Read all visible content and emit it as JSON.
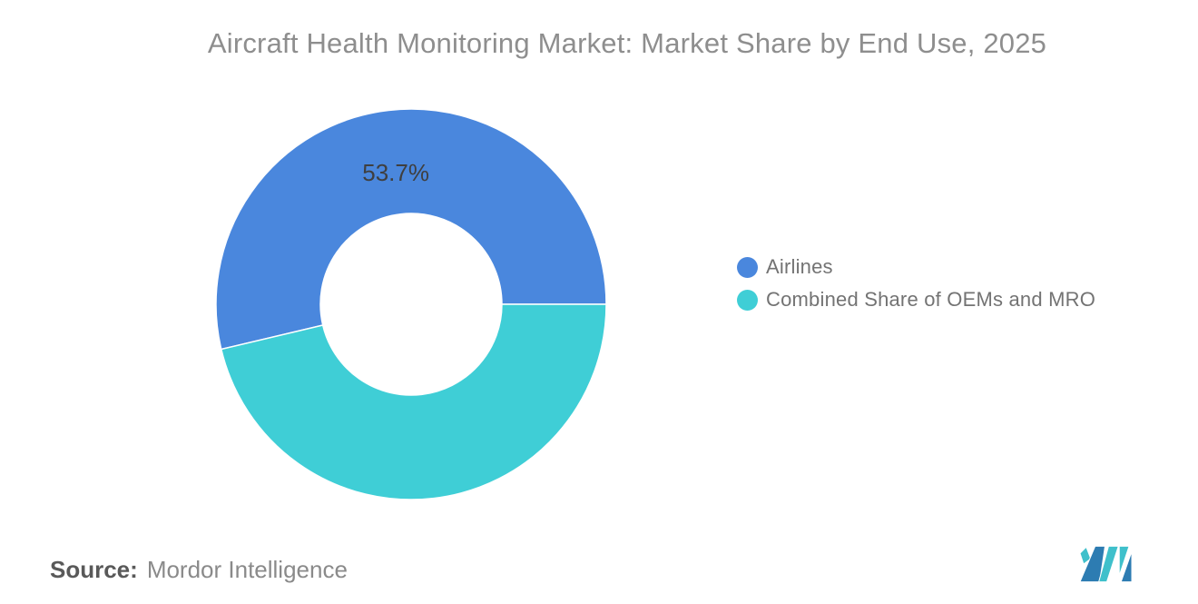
{
  "chart_data": {
    "type": "pie",
    "subtype": "donut",
    "title": "Aircraft Health Monitoring Market: Market Share by End Use, 2025",
    "inner_radius_ratio": 0.465,
    "start_angle_deg": 0,
    "direction": "counterclockwise",
    "grid": false,
    "legend_position": "right-middle",
    "series": [
      {
        "name": "Airlines",
        "value": 53.7,
        "label": "53.7%",
        "color": "#4a87dd"
      },
      {
        "name": "Combined Share of OEMs and MRO",
        "value": 46.3,
        "label": "",
        "color": "#3fced6"
      }
    ]
  },
  "source": {
    "prefix": "Source:",
    "text": "Mordor Intelligence"
  },
  "branding": {
    "logo_name": "mordor-intelligence-logo",
    "logo_blue": "#2d7cb2",
    "logo_teal": "#3fc0cb"
  }
}
